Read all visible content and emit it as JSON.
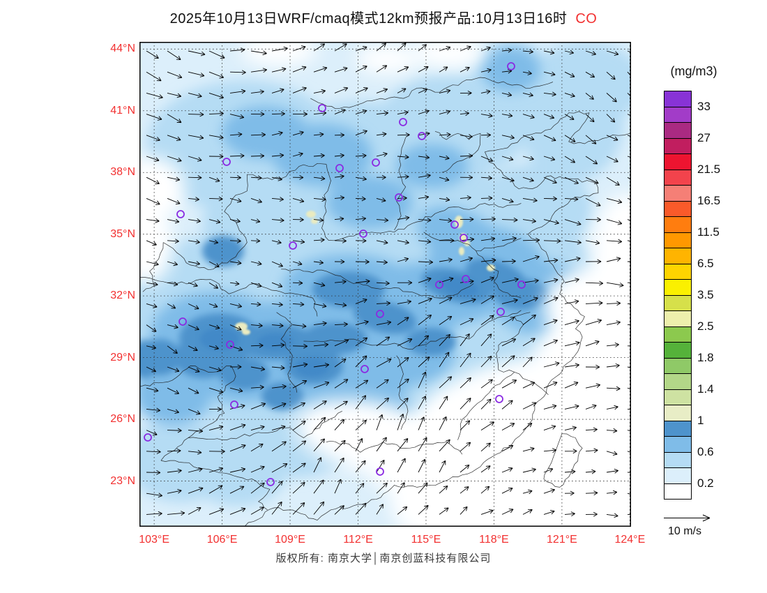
{
  "title": {
    "text": "2025年10月13日WRF/cmaq模式12km预报产品:10月13日16时",
    "species": "CO"
  },
  "footer": {
    "copyright_left": "版权所有: 南京大学",
    "separator": "│",
    "copyright_right": "南京创蓝科技有限公司"
  },
  "axes": {
    "tick_color": "#f23030",
    "lon_ticks": [
      "103°E",
      "106°E",
      "109°E",
      "112°E",
      "115°E",
      "118°E",
      "121°E",
      "124°E"
    ],
    "lat_ticks": [
      "44°N",
      "41°N",
      "38°N",
      "35°N",
      "32°N",
      "29°N",
      "26°N",
      "23°N"
    ]
  },
  "legend": {
    "units": "(mg/m3)",
    "labels": [
      "33",
      "27",
      "21.5",
      "16.5",
      "11.5",
      "6.5",
      "3.5",
      "2.5",
      "1.8",
      "1.4",
      "1",
      "0.6",
      "0.2"
    ],
    "colors_top_to_bottom": [
      "#8833D6",
      "#A23CC8",
      "#AA2A82",
      "#C11E5F",
      "#ED1430",
      "#F2434C",
      "#F57F76",
      "#FA5A2A",
      "#FF7D0F",
      "#FF9800",
      "#FFB400",
      "#FFD400",
      "#FAF000",
      "#D6E04A",
      "#EDEFAC",
      "#8CC94E",
      "#55B23A",
      "#8FC967",
      "#B3D788",
      "#CEE2A2",
      "#E8EDC6",
      "#4E93CC",
      "#7FBCE8",
      "#B5DCF4",
      "#DCEFFB",
      "#FFFFFF"
    ]
  },
  "wind_reference": {
    "label": "10 m/s"
  },
  "markers": {
    "color": "#8A2BE2",
    "positions": [
      [
        533,
        35
      ],
      [
        378,
        115
      ],
      [
        405,
        135
      ],
      [
        262,
        95
      ],
      [
        125,
        172
      ],
      [
        339,
        173
      ],
      [
        287,
        181
      ],
      [
        372,
        223
      ],
      [
        59,
        247
      ],
      [
        321,
        275
      ],
      [
        220,
        292
      ],
      [
        452,
        262
      ],
      [
        465,
        281
      ],
      [
        430,
        348
      ],
      [
        468,
        340
      ],
      [
        548,
        348
      ],
      [
        518,
        387
      ],
      [
        62,
        401
      ],
      [
        130,
        434
      ],
      [
        345,
        390
      ],
      [
        323,
        469
      ],
      [
        516,
        512
      ],
      [
        136,
        520
      ],
      [
        12,
        567
      ],
      [
        188,
        631
      ],
      [
        345,
        616
      ]
    ]
  },
  "chart_data": {
    "type": "heatmap",
    "title": "2025年10月13日WRF/cmaq模式12km预报产品:10月13日16时 CO",
    "species": "CO",
    "units": "mg/m3",
    "model": "WRF/cmaq 12km",
    "valid_time": "10月13日16时",
    "lon_axis": {
      "min": 103,
      "max": 124,
      "step": 3,
      "unit": "°E"
    },
    "lat_axis": {
      "min": 23,
      "max": 44,
      "step": 3,
      "unit": "°N"
    },
    "levels_mg_m3": [
      0.2,
      0.6,
      1,
      1.4,
      1.8,
      2.5,
      3.5,
      6.5,
      11.5,
      16.5,
      21.5,
      27,
      33
    ],
    "field_regions": [
      {
        "area": "most of the land domain",
        "co_mg_m3": "0.2-0.6"
      },
      {
        "area": "Sichuan Basin (104-108°E, 28-32°N)",
        "co_mg_m3": "0.6-1.4 with local spots above 1"
      },
      {
        "area": "Guizhou-Hunan-Hubei band (106-114°E, 27-31°N)",
        "co_mg_m3": "0.6-1"
      },
      {
        "area": "Anhui-Jiangsu belt (115-120°E, 31-34°N)",
        "co_mg_m3": "0.6-1 with local spots above 1"
      },
      {
        "area": "northern plateau patches (36-42°N)",
        "co_mg_m3": "0.2-0.8"
      },
      {
        "area": "southeast coastal sea (lower right)",
        "co_mg_m3": "below 0.2"
      }
    ],
    "wind": {
      "depiction": "vector arrows on 12km grid",
      "reference_speed": "10 m/s"
    },
    "station_markers": "hollow purple circles at major city locations",
    "grid": "dotted graticule every 3 degrees",
    "legend_position": "right"
  }
}
